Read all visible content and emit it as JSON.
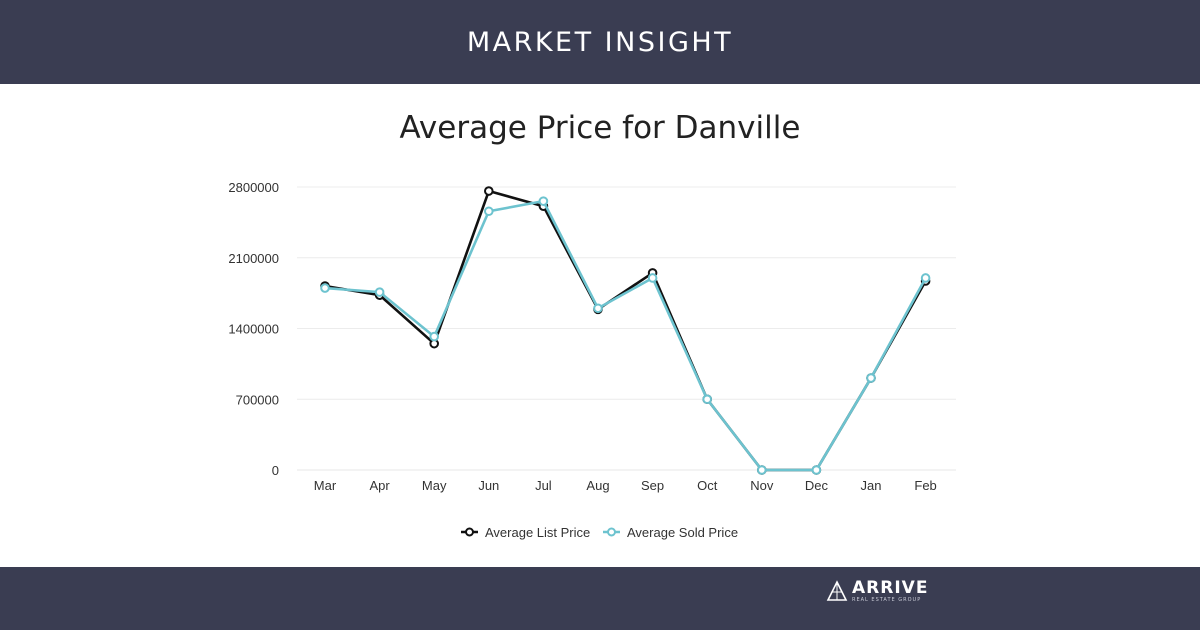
{
  "header": {
    "title": "MARKET INSIGHT"
  },
  "brand": {
    "name": "ARRIVE",
    "tagline": "REAL ESTATE GROUP"
  },
  "colors": {
    "band": "#3a3d52",
    "list_series": "#111111",
    "sold_series": "#6dc3cf",
    "grid": "#ececec",
    "axis_text": "#333333"
  },
  "chart_data": {
    "type": "line",
    "title": "Average Price for Danville",
    "xlabel": "",
    "ylabel": "",
    "categories": [
      "Mar",
      "Apr",
      "May",
      "Jun",
      "Jul",
      "Aug",
      "Sep",
      "Oct",
      "Nov",
      "Dec",
      "Jan",
      "Feb"
    ],
    "yticks": [
      "0",
      "700000",
      "1400000",
      "2100000",
      "2800000"
    ],
    "ylim": [
      0,
      2800000
    ],
    "grid": true,
    "legend_position": "bottom",
    "series": [
      {
        "name": "Average List Price",
        "color": "#111111",
        "values": [
          1820000,
          1730000,
          1250000,
          2760000,
          2610000,
          1590000,
          1950000,
          700000,
          0,
          0,
          910000,
          1870000
        ]
      },
      {
        "name": "Average Sold Price",
        "color": "#6dc3cf",
        "values": [
          1800000,
          1760000,
          1320000,
          2560000,
          2660000,
          1600000,
          1900000,
          700000,
          0,
          0,
          910000,
          1900000
        ]
      }
    ]
  }
}
